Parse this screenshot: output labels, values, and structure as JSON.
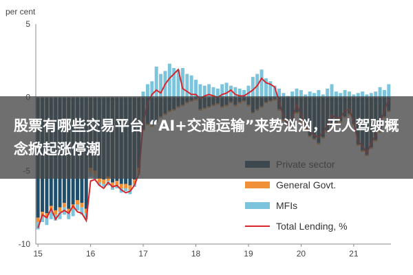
{
  "banner": {
    "headline": "股票有哪些交易平台 “AI+交通运输”来势汹汹，无人驾驶概念掀起涨停潮"
  },
  "colors": {
    "private": "#1f4e6b",
    "govt": "#f0913a",
    "mfi": "#7cc3dc",
    "total": "#d7262b",
    "axis": "#888888"
  },
  "chart_data": {
    "type": "bar",
    "title": "",
    "ylabel": "per cent",
    "xlabel": "",
    "ylim": [
      -10,
      5
    ],
    "yticks": [
      "5",
      "0",
      "-5",
      "-10"
    ],
    "xticks": [
      "15",
      "16",
      "17",
      "18",
      "19",
      "20",
      "21"
    ],
    "legend": {
      "placement": "bottom-right"
    },
    "grid": false,
    "x": [
      "2015-01",
      "2015-02",
      "2015-03",
      "2015-04",
      "2015-05",
      "2015-06",
      "2015-07",
      "2015-08",
      "2015-09",
      "2015-10",
      "2015-11",
      "2015-12",
      "2016-01",
      "2016-02",
      "2016-03",
      "2016-04",
      "2016-05",
      "2016-06",
      "2016-07",
      "2016-08",
      "2016-09",
      "2016-10",
      "2016-11",
      "2016-12",
      "2017-01",
      "2017-02",
      "2017-03",
      "2017-04",
      "2017-05",
      "2017-06",
      "2017-07",
      "2017-08",
      "2017-09",
      "2017-10",
      "2017-11",
      "2017-12",
      "2018-01",
      "2018-02",
      "2018-03",
      "2018-04",
      "2018-05",
      "2018-06",
      "2018-07",
      "2018-08",
      "2018-09",
      "2018-10",
      "2018-11",
      "2018-12",
      "2019-01",
      "2019-02",
      "2019-03",
      "2019-04",
      "2019-05",
      "2019-06",
      "2019-07",
      "2019-08",
      "2019-09",
      "2019-10",
      "2019-11",
      "2019-12",
      "2020-01",
      "2020-02",
      "2020-03",
      "2020-04",
      "2020-05",
      "2020-06",
      "2020-07",
      "2020-08",
      "2020-09",
      "2020-10",
      "2020-11",
      "2020-12",
      "2021-01",
      "2021-02",
      "2021-03",
      "2021-04",
      "2021-05",
      "2021-06",
      "2021-07",
      "2021-08",
      "2021-09"
    ],
    "series": [
      {
        "name": "Private sector",
        "values": [
          -8.2,
          -7.8,
          -7.9,
          -7.4,
          -7.7,
          -7.5,
          -7.2,
          -7.6,
          -7.3,
          -7.0,
          -7.2,
          -7.6,
          -4.8,
          -5.0,
          -5.5,
          -5.6,
          -5.4,
          -5.8,
          -5.7,
          -5.9,
          -5.9,
          -6.0,
          -5.6,
          -4.8,
          -2.2,
          -1.8,
          -1.9,
          -1.6,
          -1.3,
          -1.1,
          -0.9,
          -0.8,
          -0.6,
          -0.5,
          -0.3,
          -0.2,
          -0.1,
          -0.8,
          -0.7,
          -0.6,
          -0.5,
          -0.4,
          -0.6,
          -0.5,
          -0.3,
          -0.5,
          -0.3,
          -0.2,
          -0.5,
          -1.0,
          -0.8,
          -0.6,
          -0.3,
          -0.2,
          -0.1,
          -0.8,
          -1.5,
          -2.0,
          -1.8,
          -1.0,
          -1.6,
          -2.1,
          -2.6,
          -2.8,
          -3.1,
          -2.7,
          -2.3,
          -2.0,
          -1.7,
          -1.6,
          -1.3,
          -1.1,
          -1.8,
          -3.2,
          -3.6,
          -3.9,
          -3.4,
          -2.9,
          -2.3,
          -1.3,
          -0.9
        ]
      },
      {
        "name": "General Govt.",
        "values": [
          -0.3,
          -0.3,
          -0.3,
          -0.3,
          -0.3,
          -0.3,
          -0.3,
          -0.3,
          -0.3,
          -0.3,
          -0.3,
          -0.3,
          -0.3,
          -0.3,
          -0.3,
          -0.3,
          -0.3,
          -0.3,
          -0.3,
          -0.3,
          -0.3,
          -0.3,
          -0.3,
          -0.3,
          -0.1,
          -0.1,
          -0.1,
          -0.1,
          -0.1,
          -0.1,
          -0.1,
          -0.1,
          -0.1,
          -0.1,
          -0.1,
          -0.1,
          -0.1,
          -0.1,
          -0.1,
          -0.1,
          -0.1,
          -0.1,
          -0.1,
          -0.1,
          -0.1,
          -0.1,
          -0.1,
          -0.1,
          -0.1,
          -0.1,
          -0.1,
          -0.1,
          -0.1,
          -0.1,
          -0.1,
          -0.1,
          -0.1,
          -0.1,
          -0.1,
          -0.1,
          -0.1,
          -0.1,
          -0.1,
          -0.1,
          -0.1,
          -0.1,
          -0.1,
          -0.1,
          -0.1,
          -0.1,
          -0.1,
          -0.1,
          -0.1,
          -0.1,
          -0.1,
          -0.1,
          -0.1,
          -0.1,
          -0.1,
          -0.1,
          -0.1
        ]
      },
      {
        "name": "MFIs",
        "values": [
          -0.5,
          -0.4,
          -0.5,
          -0.6,
          -0.4,
          -0.5,
          -0.5,
          -0.4,
          -0.5,
          -0.4,
          -0.5,
          -0.4,
          -0.3,
          -0.3,
          -0.2,
          -0.2,
          -0.3,
          -0.2,
          -0.2,
          -0.3,
          -0.2,
          -0.3,
          -0.2,
          -0.2,
          0.4,
          0.9,
          1.1,
          2.1,
          1.6,
          1.8,
          2.3,
          2.0,
          1.9,
          2.0,
          1.6,
          1.5,
          1.2,
          0.9,
          0.8,
          0.9,
          0.7,
          0.6,
          0.9,
          1.0,
          0.8,
          0.7,
          0.6,
          0.5,
          0.8,
          1.4,
          1.6,
          1.9,
          1.3,
          1.1,
          0.8,
          0.6,
          0.3,
          0.1,
          0.4,
          0.6,
          0.5,
          0.2,
          0.4,
          0.3,
          0.5,
          0.2,
          0.6,
          0.9,
          0.4,
          0.3,
          0.5,
          0.4,
          0.2,
          0.3,
          0.4,
          0.2,
          0.3,
          0.4,
          0.7,
          0.5,
          0.9
        ]
      },
      {
        "name": "Total Lending, %",
        "type": "line",
        "values": [
          -8.9,
          -8.0,
          -8.2,
          -7.6,
          -8.3,
          -7.9,
          -7.7,
          -7.9,
          -7.4,
          -7.8,
          -7.9,
          -8.4,
          -5.7,
          -5.6,
          -6.0,
          -6.2,
          -5.8,
          -6.1,
          -6.0,
          -6.3,
          -6.5,
          -6.4,
          -6.0,
          -5.2,
          -1.7,
          -0.4,
          0.2,
          0.5,
          0.3,
          0.9,
          1.3,
          1.6,
          1.9,
          0.6,
          0.4,
          0.2,
          0.2,
          -0.1,
          0.1,
          0.2,
          0.1,
          0.0,
          0.2,
          0.3,
          0.5,
          0.2,
          0.1,
          0.1,
          0.3,
          0.5,
          0.8,
          1.3,
          1.0,
          0.9,
          0.7,
          -0.3,
          -1.3,
          -1.9,
          -1.4,
          -0.5,
          -1.2,
          -2.0,
          -2.3,
          -2.6,
          -2.7,
          -2.4,
          -1.9,
          -1.2,
          -1.4,
          -1.4,
          -0.9,
          -0.8,
          -1.7,
          -3.0,
          -3.3,
          -3.8,
          -3.1,
          -2.6,
          -1.7,
          -0.9,
          -0.1
        ]
      }
    ]
  }
}
